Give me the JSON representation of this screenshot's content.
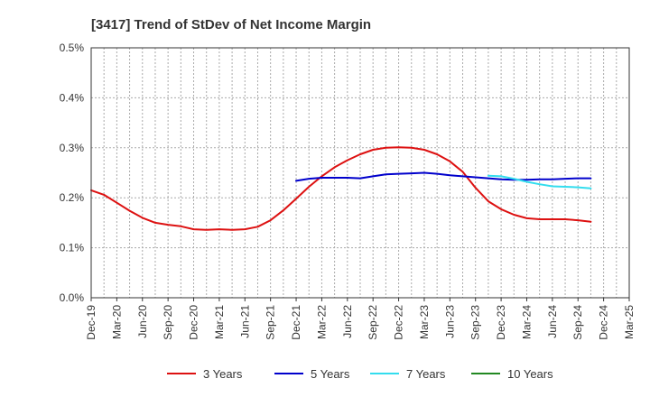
{
  "chart_data": {
    "type": "line",
    "title": "[3417]  Trend of StDev of Net Income Margin",
    "xlabel": "",
    "ylabel": "",
    "ylim": [
      0,
      0.5
    ],
    "y_ticks": [
      "0.0%",
      "0.1%",
      "0.2%",
      "0.3%",
      "0.4%",
      "0.5%"
    ],
    "x_ticks": [
      "Dec-19",
      "Mar-20",
      "Jun-20",
      "Sep-20",
      "Dec-20",
      "Mar-21",
      "Jun-21",
      "Sep-21",
      "Dec-21",
      "Mar-22",
      "Jun-22",
      "Sep-22",
      "Dec-22",
      "Mar-23",
      "Jun-23",
      "Sep-23",
      "Dec-23",
      "Mar-24",
      "Jun-24",
      "Sep-24",
      "Dec-24",
      "Mar-25"
    ],
    "grid": true,
    "legend_position": "bottom",
    "series": [
      {
        "name": "3 Years",
        "color": "#dd1111",
        "values": [
          0.215,
          0.206,
          0.19,
          0.174,
          0.16,
          0.15,
          0.146,
          0.143,
          0.137,
          0.136,
          0.137,
          0.136,
          0.137,
          0.142,
          0.155,
          0.175,
          0.198,
          0.222,
          0.243,
          0.261,
          0.275,
          0.287,
          0.296,
          0.3,
          0.301,
          0.3,
          0.296,
          0.287,
          0.273,
          0.252,
          0.22,
          0.193,
          0.177,
          0.166,
          0.159,
          0.157,
          0.157,
          0.157,
          0.155,
          0.152
        ]
      },
      {
        "name": "5 Years",
        "color": "#0000cc",
        "values": [
          null,
          null,
          null,
          null,
          null,
          null,
          null,
          null,
          null,
          null,
          null,
          null,
          null,
          null,
          null,
          null,
          0.234,
          0.238,
          0.24,
          0.24,
          0.24,
          0.239,
          0.243,
          0.247,
          0.248,
          0.249,
          0.25,
          0.248,
          0.245,
          0.243,
          0.241,
          0.239,
          0.237,
          0.236,
          0.236,
          0.237,
          0.237,
          0.238,
          0.239,
          0.239
        ]
      },
      {
        "name": "7 Years",
        "color": "#33ddee",
        "values": [
          null,
          null,
          null,
          null,
          null,
          null,
          null,
          null,
          null,
          null,
          null,
          null,
          null,
          null,
          null,
          null,
          null,
          null,
          null,
          null,
          null,
          null,
          null,
          null,
          null,
          null,
          null,
          null,
          null,
          null,
          null,
          0.244,
          0.243,
          0.238,
          0.232,
          0.227,
          0.223,
          0.222,
          0.221,
          0.219
        ]
      },
      {
        "name": "10 Years",
        "color": "#228822",
        "values": []
      }
    ]
  }
}
